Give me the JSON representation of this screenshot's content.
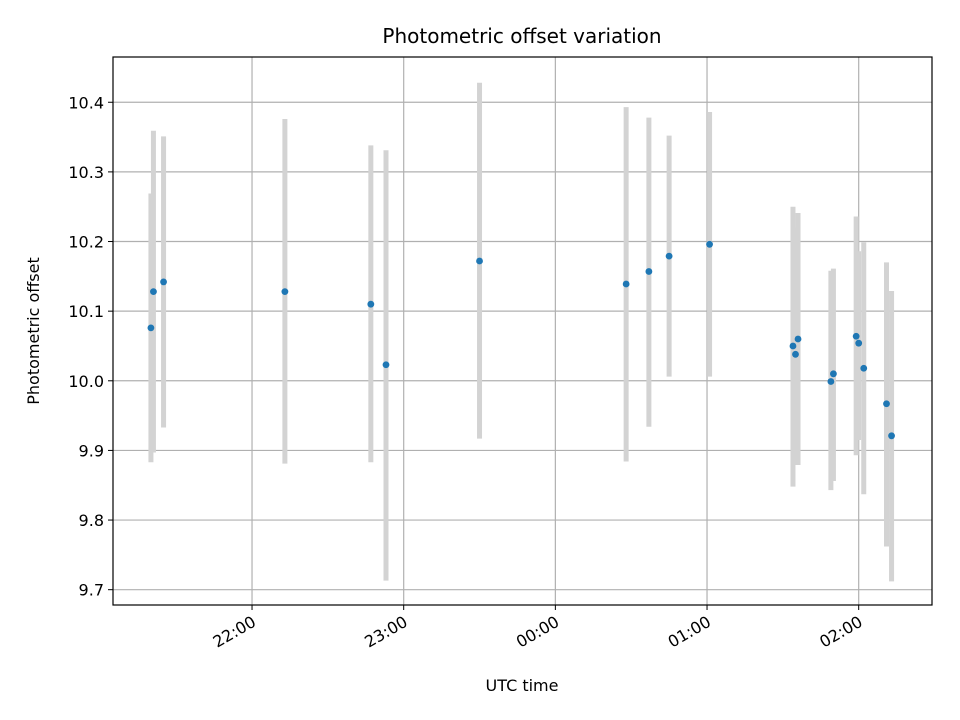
{
  "chart_data": {
    "type": "scatter",
    "title": "Photometric offset variation",
    "xlabel": "UTC time",
    "ylabel": "Photometric offset",
    "x_ticks": [
      "22:00",
      "23:00",
      "00:00",
      "01:00",
      "02:00"
    ],
    "y_ticks": [
      "9.7",
      "9.8",
      "9.9",
      "10.0",
      "10.1",
      "10.2",
      "10.3",
      "10.4"
    ],
    "xlim": [
      "21:05",
      "02:29"
    ],
    "ylim": [
      9.678,
      10.465
    ],
    "grid": true,
    "colors": {
      "point": "#1f77b4",
      "errorbar": "#d3d3d3",
      "grid": "#b0b0b0"
    },
    "points": [
      {
        "x": "21:20",
        "y": 10.076,
        "ylo": 9.883,
        "yhi": 10.269
      },
      {
        "x": "21:21",
        "y": 10.128,
        "ylo": 9.897,
        "yhi": 10.359
      },
      {
        "x": "21:25",
        "y": 10.142,
        "ylo": 9.933,
        "yhi": 10.351
      },
      {
        "x": "22:13",
        "y": 10.128,
        "ylo": 9.881,
        "yhi": 10.376
      },
      {
        "x": "22:47",
        "y": 10.11,
        "ylo": 9.883,
        "yhi": 10.338
      },
      {
        "x": "22:53",
        "y": 10.023,
        "ylo": 9.713,
        "yhi": 10.331
      },
      {
        "x": "23:30",
        "y": 10.172,
        "ylo": 9.917,
        "yhi": 10.428
      },
      {
        "x": "00:28",
        "y": 10.139,
        "ylo": 9.884,
        "yhi": 10.393
      },
      {
        "x": "00:37",
        "y": 10.157,
        "ylo": 9.934,
        "yhi": 10.378
      },
      {
        "x": "00:45",
        "y": 10.179,
        "ylo": 10.006,
        "yhi": 10.352
      },
      {
        "x": "01:01",
        "y": 10.196,
        "ylo": 10.006,
        "yhi": 10.386
      },
      {
        "x": "01:34",
        "y": 10.05,
        "ylo": 9.848,
        "yhi": 10.25
      },
      {
        "x": "01:35",
        "y": 10.038,
        "ylo": 9.879,
        "yhi": 10.22
      },
      {
        "x": "01:36",
        "y": 10.06,
        "ylo": 9.879,
        "yhi": 10.241
      },
      {
        "x": "01:49",
        "y": 9.999,
        "ylo": 9.843,
        "yhi": 10.158
      },
      {
        "x": "01:50",
        "y": 10.01,
        "ylo": 9.856,
        "yhi": 10.161
      },
      {
        "x": "01:59",
        "y": 10.064,
        "ylo": 9.893,
        "yhi": 10.236
      },
      {
        "x": "02:00",
        "y": 10.054,
        "ylo": 9.915,
        "yhi": 10.186
      },
      {
        "x": "02:02",
        "y": 10.018,
        "ylo": 9.837,
        "yhi": 10.199
      },
      {
        "x": "02:11",
        "y": 9.967,
        "ylo": 9.762,
        "yhi": 10.17
      },
      {
        "x": "02:13",
        "y": 9.921,
        "ylo": 9.712,
        "yhi": 10.129
      }
    ]
  }
}
